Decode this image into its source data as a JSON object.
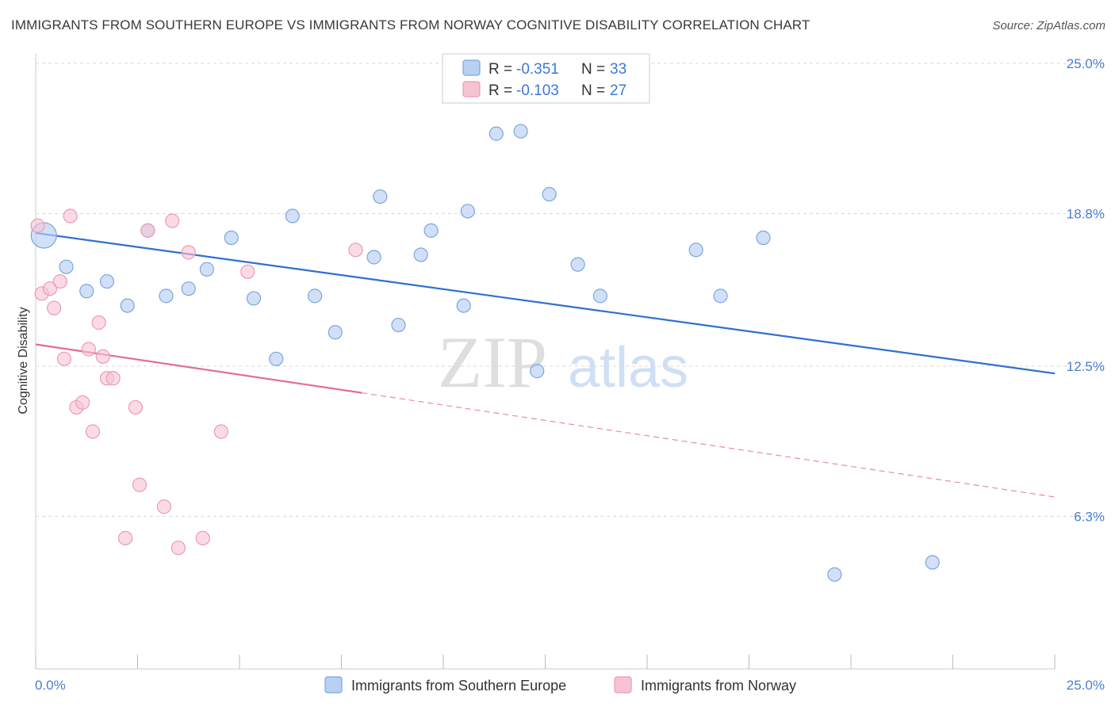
{
  "title": "IMMIGRANTS FROM SOUTHERN EUROPE VS IMMIGRANTS FROM NORWAY COGNITIVE DISABILITY CORRELATION CHART",
  "source": "Source: ZipAtlas.com",
  "watermark": {
    "zip": "ZIP",
    "atlas": "atlas"
  },
  "colors": {
    "blue_fill": "#b8d0f2",
    "blue_stroke": "#7aa6e0",
    "blue_line": "#2f6fd0",
    "pink_fill": "#f7c3d3",
    "pink_stroke": "#ec9ab5",
    "pink_line": "#e46b97",
    "grid": "#d9d9d9",
    "tick_text": "#4a7fd0"
  },
  "legend": {
    "rows": [
      {
        "r_label": "R = ",
        "r_value": "-0.351",
        "n_label": "N = ",
        "n_value": "33"
      },
      {
        "r_label": "R = ",
        "r_value": "-0.103",
        "n_label": "N = ",
        "n_value": "27"
      }
    ]
  },
  "chart_data": {
    "type": "scatter",
    "title": "IMMIGRANTS FROM SOUTHERN EUROPE VS IMMIGRANTS FROM NORWAY COGNITIVE DISABILITY CORRELATION CHART",
    "xlabel": "",
    "ylabel": "Cognitive Disability",
    "xlim": [
      0,
      25
    ],
    "ylim": [
      0,
      25
    ],
    "x_tick_labels": [
      "0.0%",
      "25.0%"
    ],
    "y_ticks": [
      6.3,
      12.5,
      18.8,
      25.0
    ],
    "y_tick_labels": [
      "6.3%",
      "12.5%",
      "18.8%",
      "25.0%"
    ],
    "grid": true,
    "legend_position": "top-center",
    "series": [
      {
        "name": "Immigrants from Southern Europe",
        "color": "#b8d0f2",
        "points": [
          [
            0.2,
            17.9
          ],
          [
            0.75,
            16.6
          ],
          [
            1.25,
            15.6
          ],
          [
            1.75,
            16.0
          ],
          [
            2.25,
            15.0
          ],
          [
            2.75,
            18.1
          ],
          [
            3.2,
            15.4
          ],
          [
            3.75,
            15.7
          ],
          [
            4.2,
            16.5
          ],
          [
            4.8,
            17.8
          ],
          [
            5.35,
            15.3
          ],
          [
            5.9,
            12.8
          ],
          [
            6.3,
            18.7
          ],
          [
            6.85,
            15.4
          ],
          [
            7.35,
            13.9
          ],
          [
            8.3,
            17.0
          ],
          [
            8.45,
            19.5
          ],
          [
            8.9,
            14.2
          ],
          [
            9.45,
            17.1
          ],
          [
            9.7,
            18.1
          ],
          [
            10.5,
            15.0
          ],
          [
            10.6,
            18.9
          ],
          [
            11.3,
            22.1
          ],
          [
            11.9,
            22.2
          ],
          [
            12.3,
            12.3
          ],
          [
            12.6,
            19.6
          ],
          [
            13.3,
            16.7
          ],
          [
            13.85,
            15.4
          ],
          [
            16.2,
            17.3
          ],
          [
            16.8,
            15.4
          ],
          [
            17.85,
            17.8
          ],
          [
            19.6,
            3.9
          ],
          [
            22.0,
            4.4
          ]
        ],
        "trend": {
          "x": [
            0,
            25
          ],
          "y": [
            18.0,
            12.2
          ],
          "style": "solid"
        }
      },
      {
        "name": "Immigrants from Norway",
        "color": "#f7c3d3",
        "points": [
          [
            0.05,
            18.3
          ],
          [
            0.15,
            15.5
          ],
          [
            0.35,
            15.7
          ],
          [
            0.45,
            14.9
          ],
          [
            0.6,
            16.0
          ],
          [
            0.7,
            12.8
          ],
          [
            0.85,
            18.7
          ],
          [
            1.0,
            10.8
          ],
          [
            1.15,
            11.0
          ],
          [
            1.3,
            13.2
          ],
          [
            1.4,
            9.8
          ],
          [
            1.55,
            14.3
          ],
          [
            1.65,
            12.9
          ],
          [
            1.75,
            12.0
          ],
          [
            1.9,
            12.0
          ],
          [
            2.2,
            5.4
          ],
          [
            2.45,
            10.8
          ],
          [
            2.55,
            7.6
          ],
          [
            2.75,
            18.1
          ],
          [
            3.15,
            6.7
          ],
          [
            3.35,
            18.5
          ],
          [
            3.5,
            5.0
          ],
          [
            3.75,
            17.2
          ],
          [
            4.1,
            5.4
          ],
          [
            4.55,
            9.8
          ],
          [
            5.2,
            16.4
          ],
          [
            7.85,
            17.3
          ]
        ],
        "trend": {
          "x": [
            0,
            8.0,
            25
          ],
          "y": [
            13.4,
            11.4,
            7.1
          ],
          "style": "solid-then-dashed"
        }
      }
    ]
  }
}
